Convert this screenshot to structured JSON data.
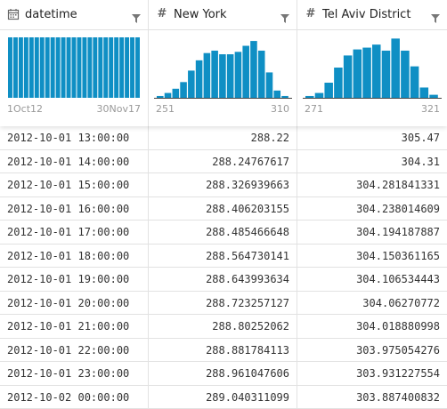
{
  "columns": [
    {
      "title": "datetime",
      "type_icon": "calendar-icon",
      "axis_min": "1Oct12",
      "axis_max": "30Nov17"
    },
    {
      "title": "New York",
      "type_icon": "hash-icon",
      "axis_min": "251",
      "axis_max": "310"
    },
    {
      "title": "Tel Aviv District",
      "type_icon": "hash-icon",
      "axis_min": "271",
      "axis_max": "321"
    }
  ],
  "colors": {
    "bar": "#0f8fc4",
    "grid_line": "#e2e2e2",
    "muted_text": "#999999"
  },
  "chart_data": [
    {
      "type": "bar",
      "values": [
        1,
        1,
        1,
        1,
        1,
        1,
        1,
        1,
        1,
        1,
        1,
        1,
        1,
        1,
        1,
        1,
        1,
        1,
        1,
        1,
        1,
        1,
        1,
        1,
        1
      ],
      "ylim": [
        0,
        1
      ]
    },
    {
      "type": "bar",
      "values": [
        0.03,
        0.08,
        0.15,
        0.26,
        0.45,
        0.62,
        0.74,
        0.78,
        0.72,
        0.72,
        0.76,
        0.86,
        0.94,
        0.78,
        0.42,
        0.12,
        0.03
      ],
      "ylim": [
        0,
        1
      ]
    },
    {
      "type": "bar",
      "values": [
        0.03,
        0.08,
        0.25,
        0.5,
        0.7,
        0.8,
        0.83,
        0.88,
        0.78,
        0.98,
        0.78,
        0.52,
        0.17,
        0.05
      ],
      "ylim": [
        0,
        1
      ]
    }
  ],
  "rows": [
    [
      "2012-10-01 13:00:00",
      "288.22",
      "305.47"
    ],
    [
      "2012-10-01 14:00:00",
      "288.24767617",
      "304.31"
    ],
    [
      "2012-10-01 15:00:00",
      "288.326939663",
      "304.281841331"
    ],
    [
      "2012-10-01 16:00:00",
      "288.406203155",
      "304.238014609"
    ],
    [
      "2012-10-01 17:00:00",
      "288.485466648",
      "304.194187887"
    ],
    [
      "2012-10-01 18:00:00",
      "288.564730141",
      "304.150361165"
    ],
    [
      "2012-10-01 19:00:00",
      "288.643993634",
      "304.106534443"
    ],
    [
      "2012-10-01 20:00:00",
      "288.723257127",
      "304.06270772"
    ],
    [
      "2012-10-01 21:00:00",
      "288.80252062",
      "304.018880998"
    ],
    [
      "2012-10-01 22:00:00",
      "288.881784113",
      "303.975054276"
    ],
    [
      "2012-10-01 23:00:00",
      "288.961047606",
      "303.931227554"
    ],
    [
      "2012-10-02 00:00:00",
      "289.040311099",
      "303.887400832"
    ]
  ]
}
